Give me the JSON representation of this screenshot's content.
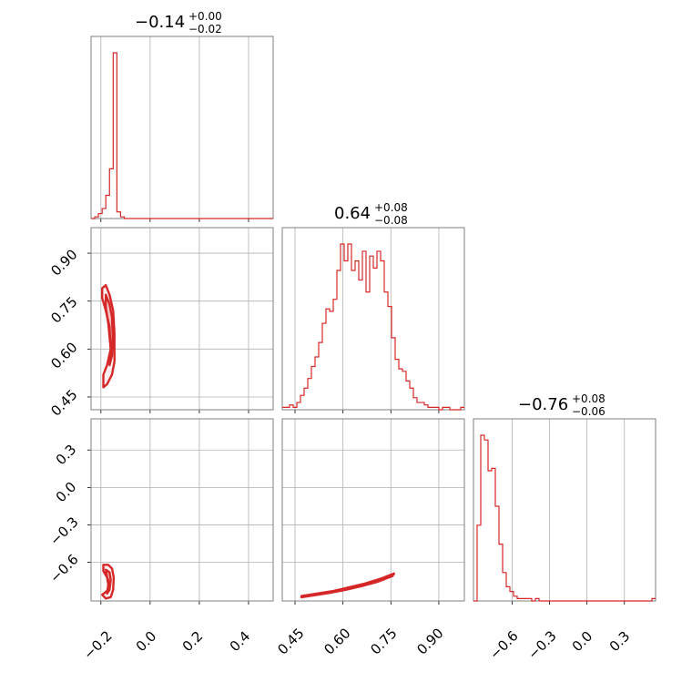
{
  "chart_data": {
    "type": "corner",
    "color": "#d62728",
    "grid": true,
    "parameters": [
      {
        "median": "−0.14",
        "upper": "+0.00",
        "lower": "−0.02"
      },
      {
        "median": "0.64",
        "upper": "+0.08",
        "lower": "−0.08"
      },
      {
        "median": "−0.76",
        "upper": "+0.08",
        "lower": "−0.06"
      }
    ],
    "axes": {
      "p0": {
        "range": [
          -0.24,
          0.5
        ],
        "ticks": [
          -0.2,
          0.0,
          0.2,
          0.4
        ],
        "tick_labels": [
          "−0.2",
          "0.0",
          "0.2",
          "0.4"
        ]
      },
      "p1": {
        "range": [
          0.41,
          0.98
        ],
        "ticks": [
          0.45,
          0.6,
          0.75,
          0.9
        ],
        "tick_labels": [
          "0.45",
          "0.60",
          "0.75",
          "0.90"
        ]
      },
      "p2": {
        "range": [
          -0.91,
          0.55
        ],
        "ticks": [
          -0.6,
          -0.3,
          0.0,
          0.3
        ],
        "tick_labels": [
          "−0.6",
          "−0.3",
          "0.0",
          "0.3"
        ]
      }
    },
    "histograms": {
      "p0": {
        "bin_edges": [
          -0.24,
          -0.225,
          -0.21,
          -0.195,
          -0.18,
          -0.165,
          -0.15,
          -0.135,
          -0.12,
          -0.105,
          -0.09,
          0.5
        ],
        "counts": [
          0,
          1,
          3,
          6,
          14,
          30,
          100,
          4,
          1,
          0,
          0
        ]
      },
      "p1": {
        "bin_start": 0.41,
        "bin_width": 0.0114,
        "counts": [
          1,
          1,
          2,
          1,
          3,
          6,
          9,
          13,
          18,
          22,
          28,
          36,
          42,
          41,
          46,
          58,
          69,
          62,
          69,
          58,
          62,
          54,
          66,
          49,
          64,
          59,
          66,
          62,
          49,
          43,
          30,
          21,
          17,
          16,
          12,
          9,
          5,
          3,
          3,
          2,
          1,
          1,
          1,
          0,
          1,
          1,
          0,
          0,
          0,
          1
        ]
      },
      "p2": {
        "bin_start": -0.91,
        "bin_width": 0.0292,
        "counts": [
          0,
          32,
          70,
          68,
          55,
          56,
          40,
          24,
          12,
          6,
          4,
          2,
          1,
          1,
          1,
          1,
          0,
          1,
          0,
          0,
          0,
          0,
          0,
          0,
          0,
          0,
          0,
          0,
          0,
          0,
          0,
          0,
          0,
          0,
          0,
          0,
          0,
          0,
          0,
          0,
          0,
          0,
          0,
          0,
          0,
          0,
          0,
          0,
          0,
          1
        ]
      }
    },
    "contours": {
      "p1_vs_p0": [
        {
          "level": "outer",
          "points": [
            [
              -0.195,
              0.79
            ],
            [
              -0.18,
              0.8
            ],
            [
              -0.165,
              0.77
            ],
            [
              -0.15,
              0.72
            ],
            [
              -0.145,
              0.65
            ],
            [
              -0.145,
              0.56
            ],
            [
              -0.155,
              0.52
            ],
            [
              -0.175,
              0.49
            ],
            [
              -0.19,
              0.48
            ],
            [
              -0.19,
              0.52
            ],
            [
              -0.175,
              0.55
            ],
            [
              -0.16,
              0.6
            ],
            [
              -0.165,
              0.67
            ],
            [
              -0.18,
              0.72
            ],
            [
              -0.195,
              0.76
            ],
            [
              -0.195,
              0.79
            ]
          ]
        },
        {
          "level": "inner",
          "points": [
            [
              -0.18,
              0.77
            ],
            [
              -0.165,
              0.74
            ],
            [
              -0.155,
              0.7
            ],
            [
              -0.152,
              0.64
            ],
            [
              -0.155,
              0.58
            ],
            [
              -0.165,
              0.55
            ],
            [
              -0.16,
              0.6
            ],
            [
              -0.17,
              0.68
            ],
            [
              -0.18,
              0.73
            ],
            [
              -0.18,
              0.77
            ]
          ]
        }
      ],
      "p2_vs_p0": [
        {
          "level": "outer",
          "points": [
            [
              -0.19,
              -0.62
            ],
            [
              -0.17,
              -0.62
            ],
            [
              -0.155,
              -0.65
            ],
            [
              -0.148,
              -0.72
            ],
            [
              -0.15,
              -0.82
            ],
            [
              -0.16,
              -0.88
            ],
            [
              -0.18,
              -0.89
            ],
            [
              -0.195,
              -0.86
            ],
            [
              -0.175,
              -0.83
            ],
            [
              -0.165,
              -0.77
            ],
            [
              -0.175,
              -0.72
            ],
            [
              -0.19,
              -0.67
            ],
            [
              -0.19,
              -0.62
            ]
          ]
        },
        {
          "level": "inner",
          "points": [
            [
              -0.18,
              -0.66
            ],
            [
              -0.165,
              -0.68
            ],
            [
              -0.16,
              -0.74
            ],
            [
              -0.165,
              -0.82
            ],
            [
              -0.175,
              -0.85
            ],
            [
              -0.17,
              -0.78
            ],
            [
              -0.175,
              -0.72
            ],
            [
              -0.18,
              -0.66
            ]
          ]
        }
      ],
      "p2_vs_p1": [
        {
          "level": "band",
          "points": [
            [
              0.47,
              -0.87
            ],
            [
              0.52,
              -0.85
            ],
            [
              0.57,
              -0.83
            ],
            [
              0.62,
              -0.8
            ],
            [
              0.67,
              -0.77
            ],
            [
              0.72,
              -0.73
            ],
            [
              0.76,
              -0.69
            ],
            [
              0.755,
              -0.71
            ],
            [
              0.71,
              -0.755
            ],
            [
              0.66,
              -0.79
            ],
            [
              0.61,
              -0.82
            ],
            [
              0.56,
              -0.845
            ],
            [
              0.51,
              -0.865
            ],
            [
              0.47,
              -0.88
            ],
            [
              0.47,
              -0.87
            ]
          ]
        }
      ]
    }
  }
}
